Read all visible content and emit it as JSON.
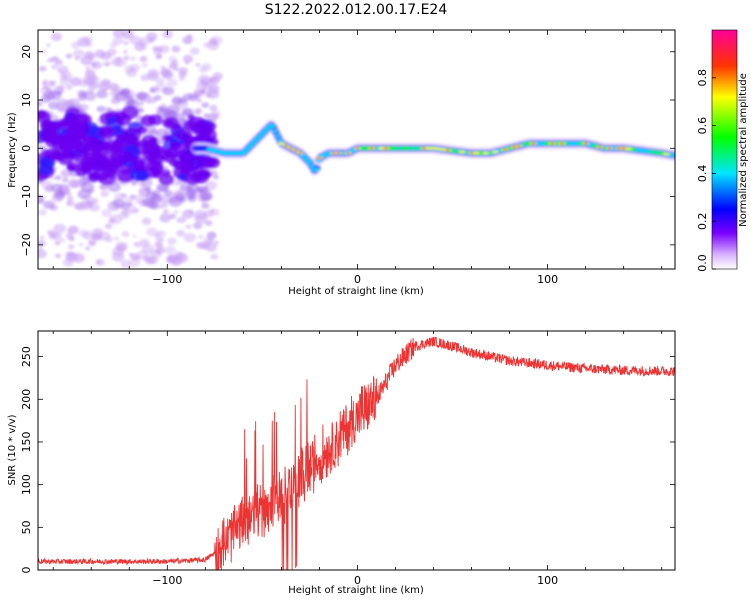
{
  "title": "S122.2022.012.00.17.E24",
  "chart_data": [
    {
      "type": "heatmap",
      "xlabel": "Height of straight line (km)",
      "ylabel": "Frequency (Hz)",
      "xlim": [
        -168,
        167
      ],
      "ylim": [
        -25,
        24.5
      ],
      "xticks": [
        -100,
        0,
        100
      ],
      "yticks": [
        -20,
        -10,
        0,
        10,
        20
      ],
      "colorbar": {
        "label": "Normalized spectral amplitude",
        "range": [
          0,
          1
        ],
        "ticks": [
          "0.0",
          "0.2",
          "0.4",
          "0.6",
          "0.8"
        ],
        "colors": [
          "#ffffff",
          "#7a00ff",
          "#0000ff",
          "#00e5ff",
          "#00ff00",
          "#ffff00",
          "#ff0000",
          "#ff00a0"
        ]
      },
      "ridge": {
        "x": [
          -168,
          -150,
          -130,
          -110,
          -90,
          -80,
          -70,
          -60,
          -50,
          -45,
          -40,
          -35,
          -30,
          -25,
          -22,
          -20,
          -15,
          -10,
          -5,
          0,
          10,
          20,
          30,
          40,
          50,
          60,
          70,
          80,
          90,
          100,
          110,
          120,
          130,
          140,
          150,
          160,
          167
        ],
        "y": [
          0,
          0.5,
          0,
          1,
          0,
          0,
          -1,
          -1,
          3,
          5,
          1,
          0,
          -1,
          -3,
          -5,
          -2,
          -1,
          -1,
          -1,
          0,
          0,
          0,
          0,
          0,
          -0.5,
          -1,
          -1,
          0,
          1,
          1,
          1,
          1,
          0,
          0,
          -0.5,
          -1,
          -1.5
        ]
      }
    },
    {
      "type": "line",
      "xlabel": "Height of straight line (km)",
      "ylabel": "SNR (10 * v/v)",
      "xlim": [
        -168,
        167
      ],
      "ylim": [
        0,
        280
      ],
      "xticks": [
        -100,
        0,
        100
      ],
      "yticks": [
        0,
        50,
        100,
        150,
        200,
        250
      ],
      "color": "#ee3333",
      "envelope": {
        "x": [
          -168,
          -140,
          -100,
          -80,
          -72,
          -65,
          -55,
          -45,
          -35,
          -30,
          -25,
          -20,
          -10,
          0,
          10,
          20,
          30,
          40,
          50,
          60,
          80,
          100,
          120,
          140,
          167
        ],
        "y": [
          10,
          10,
          10,
          12,
          25,
          45,
          65,
          80,
          95,
          110,
          120,
          130,
          155,
          180,
          200,
          240,
          262,
          268,
          262,
          255,
          245,
          240,
          236,
          234,
          233
        ]
      }
    }
  ]
}
